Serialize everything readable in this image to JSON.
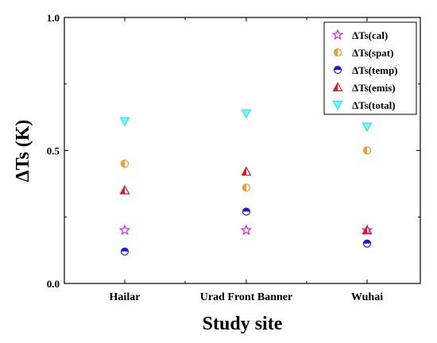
{
  "chart_data": {
    "type": "scatter",
    "xlabel": "Study site",
    "ylabel": "ΔTs (K)",
    "categories": [
      "Hailar",
      "Urad Front Banner",
      "Wuhai"
    ],
    "ylim": [
      0.0,
      1.0
    ],
    "yticks": [
      0.0,
      0.5,
      1.0
    ],
    "ytick_labels": [
      "0.0",
      "0.5",
      "1.0"
    ],
    "grid": false,
    "legend_position": "top-right",
    "series": [
      {
        "name": "ΔTs(cal)",
        "marker": "star",
        "color": "#e020e0",
        "values": [
          0.2,
          0.2,
          0.2
        ]
      },
      {
        "name": "ΔTs(spat)",
        "marker": "half-circle-left",
        "color": "#f39a2e",
        "values": [
          0.45,
          0.36,
          0.5
        ]
      },
      {
        "name": "ΔTs(temp)",
        "marker": "half-circle-top",
        "color": "#1a1ae0",
        "values": [
          0.12,
          0.27,
          0.15
        ]
      },
      {
        "name": "ΔTs(emis)",
        "marker": "half-triangle",
        "color": "#e01a1a",
        "values": [
          0.35,
          0.42,
          0.2
        ]
      },
      {
        "name": "ΔTs(total)",
        "marker": "triangle-down",
        "color": "#22e8e8",
        "values": [
          0.61,
          0.64,
          0.59
        ]
      }
    ]
  }
}
